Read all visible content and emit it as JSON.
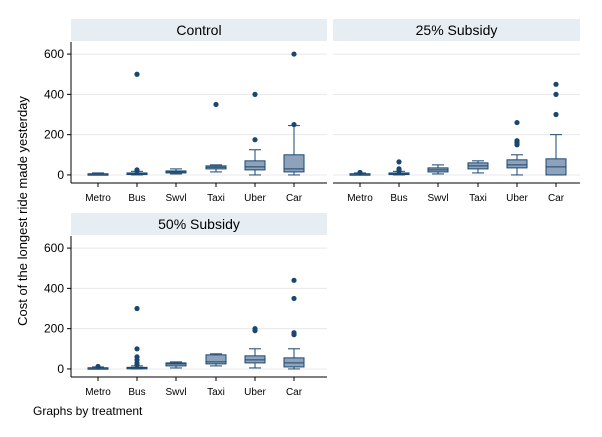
{
  "chart_data": {
    "type": "boxplot",
    "ylabel": "Cost of the longest ride made yesterday",
    "note": "Graphs by treatment",
    "categories": [
      "Metro",
      "Bus",
      "Swvl",
      "Taxi",
      "Uber",
      "Car"
    ],
    "yticks": [
      0,
      200,
      400,
      600
    ],
    "ylim": [
      -40,
      660
    ],
    "grid": true,
    "colors": {
      "box_fill": "#8ea3bb",
      "box_stroke": "#1a476f",
      "panel_header": "#e6edf3",
      "grid": "#e8e8e8"
    },
    "panels": [
      {
        "title": "Control",
        "boxes": [
          {
            "category": "Metro",
            "lw": 0,
            "q1": 2,
            "median": 4,
            "q3": 6,
            "uw": 10,
            "outliers": []
          },
          {
            "category": "Bus",
            "lw": 0,
            "q1": 2,
            "median": 5,
            "q3": 10,
            "uw": 18,
            "outliers": [
              20,
              25,
              500
            ]
          },
          {
            "category": "Swvl",
            "lw": 5,
            "q1": 10,
            "median": 15,
            "q3": 20,
            "uw": 30,
            "outliers": []
          },
          {
            "category": "Taxi",
            "lw": 15,
            "q1": 30,
            "median": 38,
            "q3": 45,
            "uw": 50,
            "outliers": [
              350
            ]
          },
          {
            "category": "Uber",
            "lw": 0,
            "q1": 25,
            "median": 40,
            "q3": 70,
            "uw": 125,
            "outliers": [
              175,
              400
            ]
          },
          {
            "category": "Car",
            "lw": 0,
            "q1": 15,
            "median": 30,
            "q3": 100,
            "uw": 245,
            "outliers": [
              250,
              600
            ]
          }
        ]
      },
      {
        "title": "25% Subsidy",
        "boxes": [
          {
            "category": "Metro",
            "lw": 0,
            "q1": 2,
            "median": 4,
            "q3": 6,
            "uw": 10,
            "outliers": [
              12
            ]
          },
          {
            "category": "Bus",
            "lw": 0,
            "q1": 2,
            "median": 5,
            "q3": 10,
            "uw": 18,
            "outliers": [
              20,
              30,
              65
            ]
          },
          {
            "category": "Swvl",
            "lw": 5,
            "q1": 15,
            "median": 25,
            "q3": 35,
            "uw": 50,
            "outliers": []
          },
          {
            "category": "Taxi",
            "lw": 10,
            "q1": 30,
            "median": 45,
            "q3": 60,
            "uw": 70,
            "outliers": []
          },
          {
            "category": "Uber",
            "lw": 0,
            "q1": 35,
            "median": 50,
            "q3": 75,
            "uw": 100,
            "outliers": [
              150,
              160,
              170,
              260
            ]
          },
          {
            "category": "Car",
            "lw": 0,
            "q1": 0,
            "median": 40,
            "q3": 80,
            "uw": 200,
            "outliers": [
              300,
              400,
              450
            ]
          }
        ]
      },
      {
        "title": "50% Subsidy",
        "boxes": [
          {
            "category": "Metro",
            "lw": 0,
            "q1": 2,
            "median": 4,
            "q3": 6,
            "uw": 10,
            "outliers": [
              12
            ]
          },
          {
            "category": "Bus",
            "lw": 0,
            "q1": 2,
            "median": 5,
            "q3": 8,
            "uw": 15,
            "outliers": [
              20,
              30,
              45,
              60,
              100,
              300
            ]
          },
          {
            "category": "Swvl",
            "lw": 5,
            "q1": 15,
            "median": 25,
            "q3": 30,
            "uw": 35,
            "outliers": []
          },
          {
            "category": "Taxi",
            "lw": 15,
            "q1": 25,
            "median": 35,
            "q3": 70,
            "uw": 75,
            "outliers": []
          },
          {
            "category": "Uber",
            "lw": 5,
            "q1": 30,
            "median": 45,
            "q3": 65,
            "uw": 100,
            "outliers": [
              190,
              200
            ]
          },
          {
            "category": "Car",
            "lw": 0,
            "q1": 10,
            "median": 30,
            "q3": 55,
            "uw": 100,
            "outliers": [
              170,
              180,
              350,
              440
            ]
          }
        ]
      }
    ]
  }
}
